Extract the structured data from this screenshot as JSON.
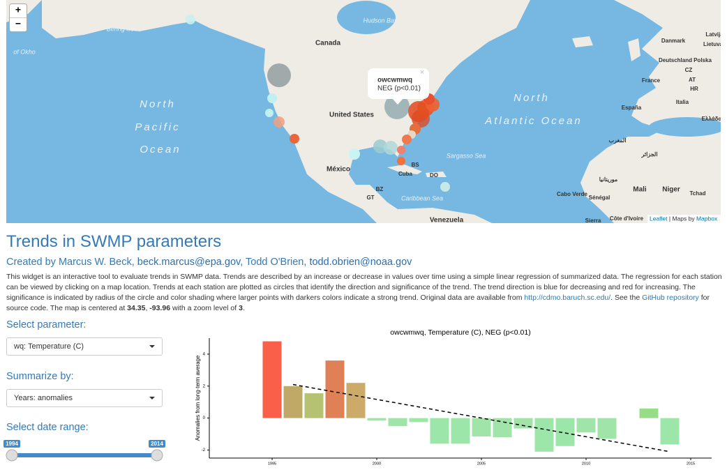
{
  "map": {
    "zoom_in": "+",
    "zoom_out": "−",
    "labels": [
      "Bering Sea",
      "of Okho",
      "Hudson Bay",
      "Canada",
      "United States",
      "México",
      "North",
      "Pacific",
      "Ocean",
      "North",
      "Atlantic Ocean",
      "Sargasso Sea",
      "Caribbean Sea",
      "Cuba",
      "BS",
      "DO",
      "BZ",
      "GT",
      "Venezuela",
      "Danmark",
      "Deutschland",
      "Polska",
      "CZ",
      "France",
      "AT",
      "Italia",
      "España",
      "Ελλάδα",
      "Latvija",
      "Lietuva",
      "المغرب",
      "الجزائر",
      "موريتانيا",
      "Mali",
      "Niger",
      "Tchad",
      "Cabo Verde",
      "Sénégal",
      "Sierra",
      "Côte d'Ivoire",
      "HR"
    ],
    "popup": {
      "station": "owcwmwq",
      "result": "NEG (p<0.01)",
      "close": "×"
    },
    "attribution": {
      "leaflet": "Leaflet",
      "separator": " | Maps by ",
      "mapbox": "Mapbox"
    }
  },
  "header": {
    "title": "Trends in SWMP parameters",
    "byline": {
      "text_1": "Created by Marcus W. Beck, ",
      "email_1": "beck.marcus@epa.gov",
      "text_2": ", Todd O'Brien, ",
      "email_2": "todd.obrien@noaa.gov"
    }
  },
  "description": {
    "text_1": "This widget is an interactive tool to evaluate trends in SWMP data. Trends are described by an increase or decrease in values over time using a simple linear regression of summarized data. The regression for each station can be viewed by clicking on a map location. Trends at each station are plotted as circles that identify the direction and significance of the trend. The trend direction is blue for decreasing and red for increasing. The significance is indicated by radius of the circle and color shading where larger points with darkers colors indicate a strong trend. Original data are available from ",
    "link_1": "http://cdmo.baruch.sc.edu/",
    "text_2": ". See the ",
    "link_2": "GitHub repository",
    "text_3": " for source code. The map is centered at ",
    "latitude": 34.35,
    "text_4": ", ",
    "longitude": -93.96,
    "text_5": " with a zoom level of ",
    "zoom": 3,
    "text_6": "."
  },
  "controls": {
    "parameter_label": "Select parameter:",
    "parameter_value": "wq: Temperature (C)",
    "summary_label": "Summarize by:",
    "summary_value": "Years: anomalies",
    "date_label": "Select date range:",
    "date_range": [
      1994,
      2014
    ]
  },
  "chart_data": {
    "type": "bar",
    "title": "owcwmwq, Temperature (C), NEG (p<0.01)",
    "y_label": "Anomalies from long-term average",
    "x": [
      1995,
      1996,
      1997,
      1998,
      1999,
      2000,
      2001,
      2002,
      2003,
      2004,
      2005,
      2006,
      2007,
      2008,
      2009,
      2010,
      2011,
      2012,
      2013,
      2014
    ],
    "values": [
      4.8,
      2.0,
      1.55,
      3.6,
      2.2,
      -0.15,
      -0.5,
      -0.25,
      -1.6,
      -1.6,
      -1.15,
      -1.2,
      -0.65,
      -2.1,
      -1.75,
      -0.9,
      -1.3,
      null,
      0.6,
      -1.65
    ],
    "colors": [
      "#fa6049",
      "#c0a867",
      "#b4c272",
      "#e08057",
      "#ccab6a",
      "#a6e0a8",
      "#a0e4aa",
      "#a0e4aa",
      "#9de6a9",
      "#9de6a9",
      "#a0e4aa",
      "#a0e4aa",
      "#a2e3a8",
      "#9de6a9",
      "#9de6a9",
      "#a0e4aa",
      "#a0e4aa",
      null,
      "#97dd86",
      "#9de6a9"
    ],
    "trend": {
      "x": [
        1996,
        2014
      ],
      "values": [
        2.1,
        -2.1
      ]
    },
    "xlim": [
      1992,
      2016
    ],
    "ylim": [
      -2.5,
      5
    ],
    "xticks": [
      1995,
      2000,
      2005,
      2010,
      2015
    ],
    "yticks": [
      -2,
      0,
      2,
      4
    ]
  }
}
